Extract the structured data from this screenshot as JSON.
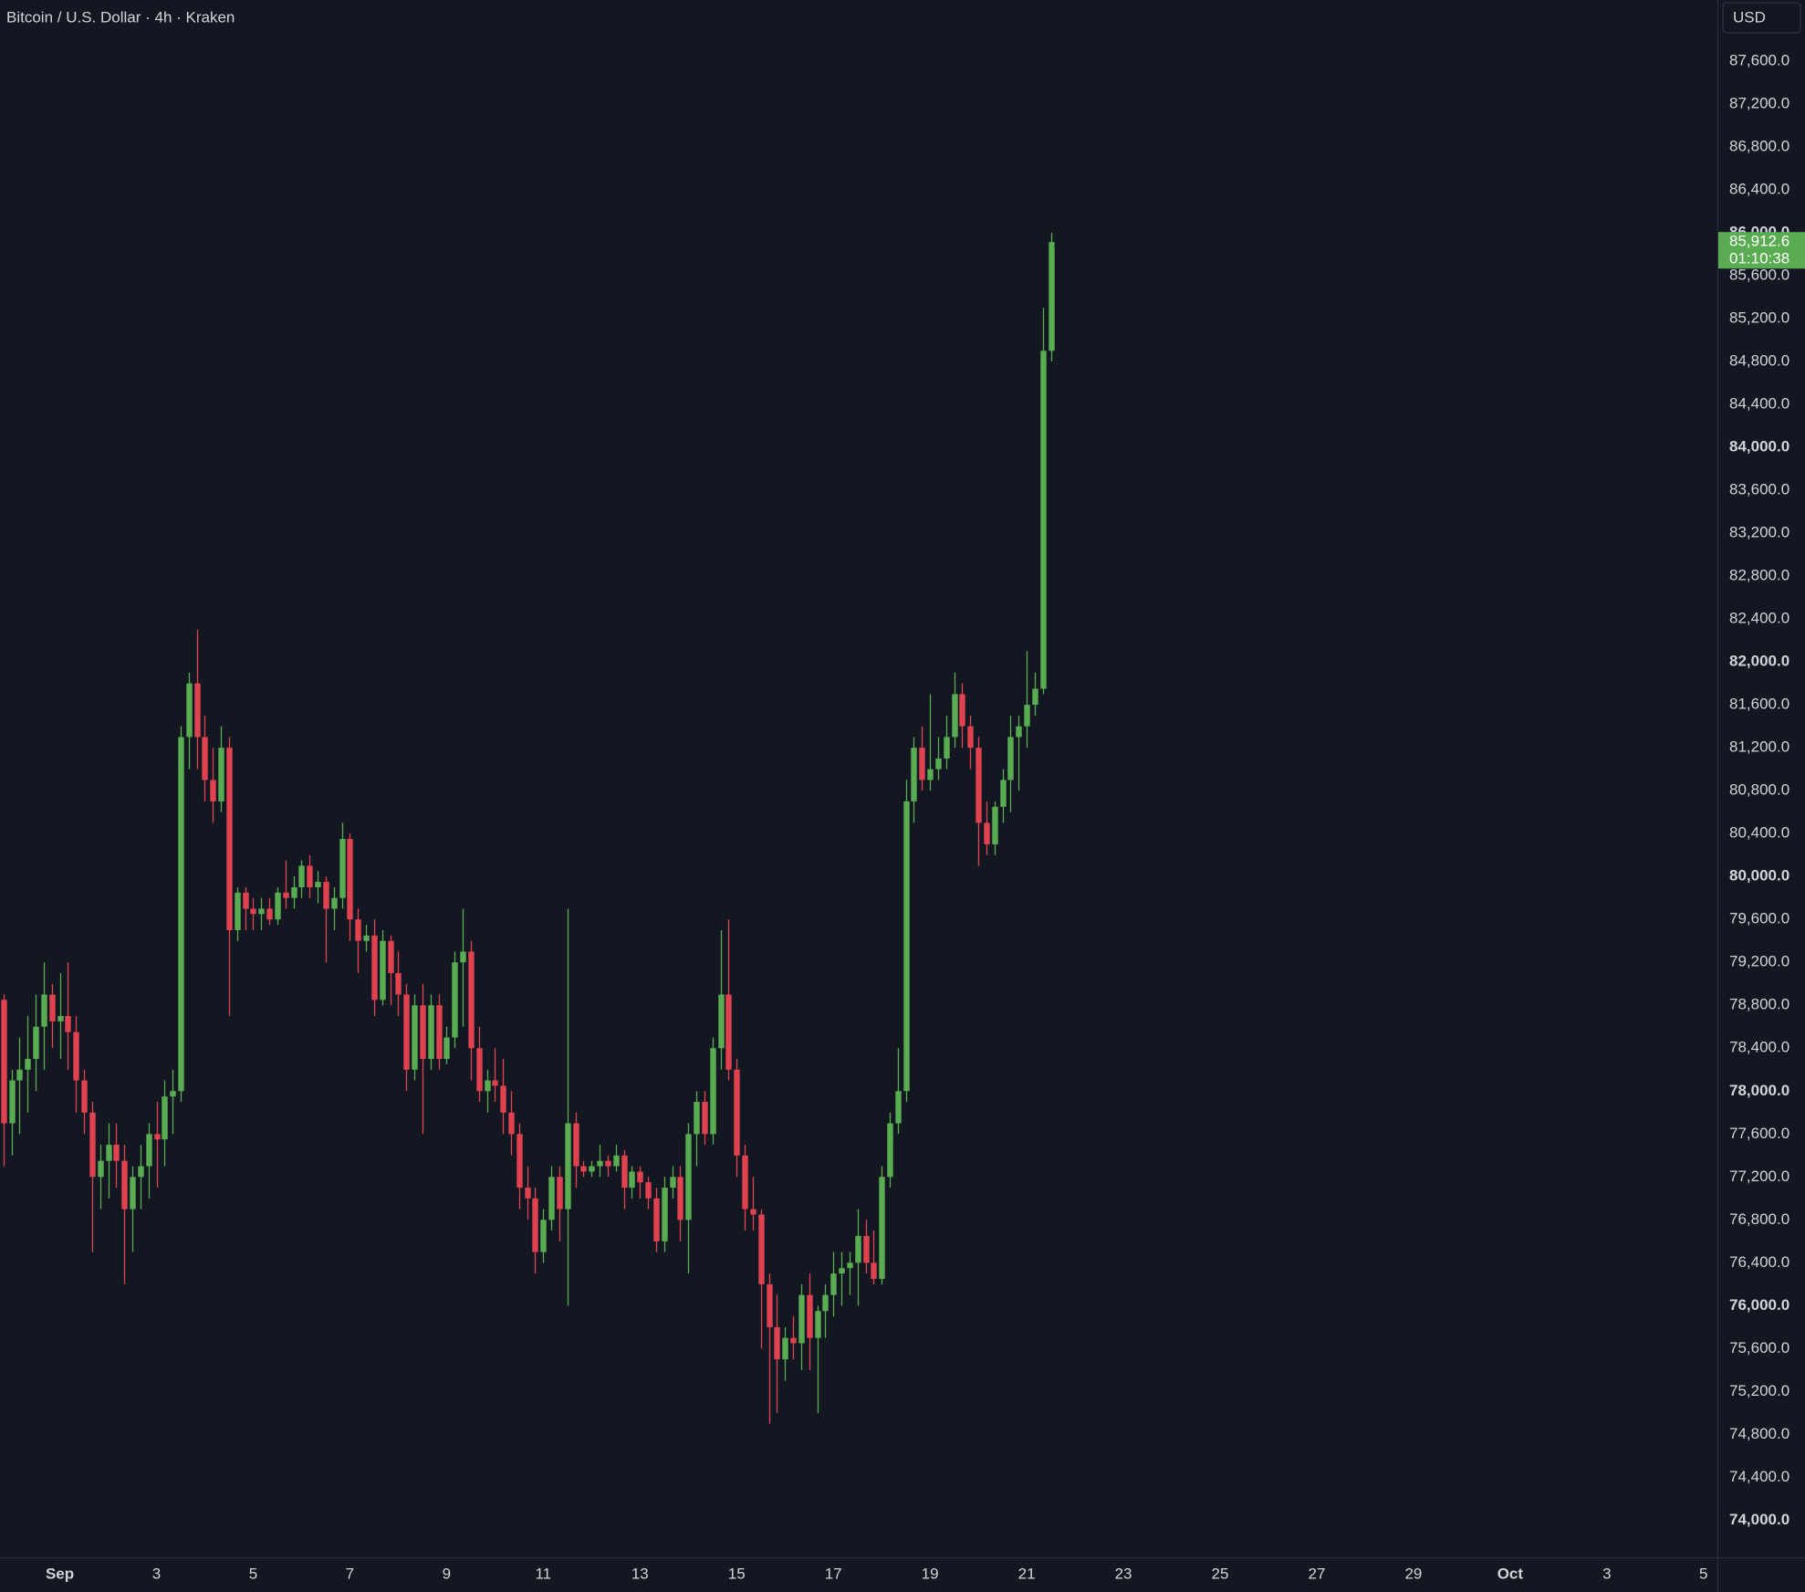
{
  "header": {
    "title": "Bitcoin / U.S. Dollar · 4h · Kraken",
    "currency_button": "USD"
  },
  "chart_data": {
    "type": "candlestick",
    "up_color": "#5aac52",
    "down_color": "#e0434f",
    "xlim": [
      -5.7,
      846.9
    ],
    "ylim": [
      73655,
      88169
    ],
    "xticks": [
      {
        "value": 24,
        "label": "Sep"
      },
      {
        "value": 72,
        "label": "3"
      },
      {
        "value": 120,
        "label": "5"
      },
      {
        "value": 168,
        "label": "7"
      },
      {
        "value": 216,
        "label": "9"
      },
      {
        "value": 264,
        "label": "11"
      },
      {
        "value": 312,
        "label": "13"
      },
      {
        "value": 360,
        "label": "15"
      },
      {
        "value": 408,
        "label": "17"
      },
      {
        "value": 456,
        "label": "19"
      },
      {
        "value": 504,
        "label": "21"
      },
      {
        "value": 552,
        "label": "23"
      },
      {
        "value": 600,
        "label": "25"
      },
      {
        "value": 648,
        "label": "27"
      },
      {
        "value": 696,
        "label": "29"
      },
      {
        "value": 744,
        "label": "Oct"
      },
      {
        "value": 792,
        "label": "3"
      },
      {
        "value": 840,
        "label": "5"
      }
    ],
    "yticks": [
      {
        "value": 74000,
        "label": "74,000.0"
      },
      {
        "value": 74400,
        "label": "74,400.0"
      },
      {
        "value": 74800,
        "label": "74,800.0"
      },
      {
        "value": 75200,
        "label": "75,200.0"
      },
      {
        "value": 75600,
        "label": "75,600.0"
      },
      {
        "value": 76000,
        "label": "76,000.0"
      },
      {
        "value": 76400,
        "label": "76,400.0"
      },
      {
        "value": 76800,
        "label": "76,800.0"
      },
      {
        "value": 77200,
        "label": "77,200.0"
      },
      {
        "value": 77600,
        "label": "77,600.0"
      },
      {
        "value": 78000,
        "label": "78,000.0"
      },
      {
        "value": 78400,
        "label": "78,400.0"
      },
      {
        "value": 78800,
        "label": "78,800.0"
      },
      {
        "value": 79200,
        "label": "79,200.0"
      },
      {
        "value": 79600,
        "label": "79,600.0"
      },
      {
        "value": 80000,
        "label": "80,000.0"
      },
      {
        "value": 80400,
        "label": "80,400.0"
      },
      {
        "value": 80800,
        "label": "80,800.0"
      },
      {
        "value": 81200,
        "label": "81,200.0"
      },
      {
        "value": 81600,
        "label": "81,600.0"
      },
      {
        "value": 82000,
        "label": "82,000.0"
      },
      {
        "value": 82400,
        "label": "82,400.0"
      },
      {
        "value": 82800,
        "label": "82,800.0"
      },
      {
        "value": 83200,
        "label": "83,200.0"
      },
      {
        "value": 83600,
        "label": "83,600.0"
      },
      {
        "value": 84000,
        "label": "84,000.0"
      },
      {
        "value": 84400,
        "label": "84,400.0"
      },
      {
        "value": 84800,
        "label": "84,800.0"
      },
      {
        "value": 85200,
        "label": "85,200.0"
      },
      {
        "value": 85600,
        "label": "85,600.0"
      },
      {
        "value": 86000,
        "label": "86,000.0"
      },
      {
        "value": 86400,
        "label": "86,400.0"
      },
      {
        "value": 86800,
        "label": "86,800.0"
      },
      {
        "value": 87200,
        "label": "87,200.0"
      },
      {
        "value": 87600,
        "label": "87,600.0"
      }
    ],
    "x": [
      -4,
      0,
      4,
      8,
      12,
      16,
      20,
      24,
      28,
      32,
      36,
      40,
      44,
      48,
      52,
      56,
      60,
      64,
      68,
      72,
      76,
      80,
      84,
      88,
      92,
      96,
      100,
      104,
      108,
      112,
      116,
      120,
      124,
      128,
      132,
      136,
      140,
      144,
      148,
      152,
      156,
      160,
      164,
      168,
      172,
      176,
      180,
      184,
      188,
      192,
      196,
      200,
      204,
      208,
      212,
      216,
      220,
      224,
      228,
      232,
      236,
      240,
      244,
      248,
      252,
      256,
      260,
      264,
      268,
      272,
      276,
      280,
      284,
      288,
      292,
      296,
      300,
      304,
      308,
      312,
      316,
      320,
      324,
      328,
      332,
      336,
      340,
      344,
      348,
      352,
      356,
      360,
      364,
      368,
      372,
      376,
      380,
      384,
      388,
      392,
      396,
      400,
      404,
      408,
      412,
      416,
      420,
      424,
      428,
      432,
      436,
      440,
      444,
      448,
      452,
      456,
      460,
      464,
      468,
      472,
      476,
      480,
      484,
      488,
      492,
      496,
      500,
      504,
      508,
      512,
      516
    ],
    "open": [
      78850,
      77700,
      78100,
      78200,
      78300,
      78600,
      78900,
      78650,
      78700,
      78550,
      78100,
      77800,
      77200,
      77350,
      77500,
      77350,
      76900,
      77200,
      77300,
      77600,
      77550,
      77950,
      78000,
      81300,
      81800,
      81300,
      80900,
      80700,
      81200,
      79500,
      79850,
      79700,
      79650,
      79700,
      79600,
      79850,
      79800,
      79900,
      80100,
      79900,
      79950,
      79700,
      79800,
      80350,
      79600,
      79400,
      79450,
      78850,
      79400,
      79100,
      78900,
      78200,
      78800,
      78300,
      78800,
      78300,
      78500,
      79200,
      79300,
      78400,
      78000,
      78100,
      78050,
      77800,
      77600,
      77100,
      77000,
      76500,
      76800,
      77200,
      76900,
      77700,
      77300,
      77250,
      77300,
      77350,
      77300,
      77400,
      77100,
      77250,
      77150,
      77000,
      76600,
      77100,
      77200,
      76800,
      77600,
      77900,
      77600,
      78400,
      78900,
      78200,
      77400,
      76900,
      76850,
      76200,
      75800,
      75500,
      75700,
      75650,
      76100,
      75700,
      75950,
      76100,
      76300,
      76350,
      76400,
      76650,
      76400,
      76250,
      77200,
      77700,
      78000,
      80700,
      81200,
      80900,
      81000,
      81100,
      81300,
      81700,
      81400,
      81200,
      80500,
      80300,
      80650,
      80900,
      81300,
      81400,
      81600,
      81750,
      84900
    ],
    "high": [
      78900,
      78200,
      78500,
      78700,
      78900,
      79200,
      79000,
      79100,
      79200,
      78700,
      78200,
      77900,
      77500,
      77700,
      77700,
      77500,
      77300,
      77500,
      77700,
      77900,
      78100,
      78200,
      81400,
      81900,
      82300,
      81500,
      81200,
      81400,
      81300,
      79900,
      79900,
      79800,
      79800,
      79800,
      79900,
      80150,
      80000,
      80150,
      80200,
      80050,
      80000,
      79900,
      80500,
      80400,
      79700,
      79550,
      79600,
      79500,
      79450,
      79300,
      79000,
      78900,
      79000,
      78900,
      78900,
      78600,
      79300,
      79700,
      79400,
      78600,
      78200,
      78400,
      78300,
      78000,
      77700,
      77300,
      77100,
      76900,
      77300,
      77300,
      79700,
      77800,
      77350,
      77350,
      77500,
      77400,
      77500,
      77450,
      77300,
      77300,
      77200,
      77100,
      77200,
      77300,
      77300,
      77700,
      78000,
      78000,
      78500,
      79500,
      79600,
      78300,
      77500,
      77200,
      76900,
      76300,
      76100,
      75800,
      75900,
      76200,
      76300,
      76000,
      76200,
      76500,
      76500,
      76500,
      76900,
      76800,
      76700,
      77300,
      77800,
      78400,
      80900,
      81300,
      81400,
      81700,
      81300,
      81500,
      81900,
      81800,
      81500,
      81300,
      80700,
      80700,
      81000,
      81500,
      81500,
      82100,
      81900,
      85300,
      86000
    ],
    "low": [
      77300,
      77400,
      77600,
      77800,
      78000,
      78200,
      78400,
      78300,
      78200,
      77800,
      77600,
      76500,
      76900,
      77000,
      77100,
      76200,
      76500,
      76900,
      77000,
      77100,
      77300,
      77600,
      77900,
      81000,
      81000,
      80700,
      80500,
      80600,
      78700,
      79400,
      79500,
      79500,
      79500,
      79550,
      79550,
      79700,
      79700,
      79800,
      79800,
      79750,
      79200,
      79500,
      79700,
      79400,
      79100,
      79300,
      78700,
      78800,
      78800,
      78700,
      78000,
      78100,
      77600,
      78200,
      78200,
      78250,
      78400,
      78600,
      78100,
      77900,
      77800,
      77900,
      77600,
      77400,
      76900,
      76800,
      76300,
      76400,
      76700,
      76600,
      76000,
      77100,
      77200,
      77200,
      77200,
      77200,
      77250,
      76900,
      77000,
      77000,
      76900,
      76500,
      76500,
      77000,
      76600,
      76300,
      77300,
      77500,
      77500,
      78200,
      78100,
      77200,
      76700,
      76700,
      75600,
      74900,
      75000,
      75300,
      75500,
      75400,
      75400,
      75000,
      75700,
      75900,
      76000,
      76100,
      76000,
      76300,
      76200,
      76200,
      77100,
      77600,
      77900,
      80500,
      80800,
      80800,
      80900,
      81000,
      81200,
      81200,
      81000,
      80100,
      80200,
      80200,
      80500,
      80600,
      80800,
      81200,
      81500,
      81700,
      84800
    ],
    "close": [
      77700,
      78100,
      78200,
      78300,
      78600,
      78900,
      78650,
      78700,
      78550,
      78100,
      77800,
      77200,
      77350,
      77500,
      77350,
      76900,
      77200,
      77300,
      77600,
      77550,
      77950,
      78000,
      81300,
      81800,
      81300,
      80900,
      80700,
      81200,
      79500,
      79850,
      79700,
      79650,
      79700,
      79600,
      79850,
      79800,
      79900,
      80100,
      79900,
      79950,
      79700,
      79800,
      80350,
      79600,
      79400,
      79450,
      78850,
      79400,
      79100,
      78900,
      78200,
      78800,
      78300,
      78800,
      78300,
      78500,
      79200,
      79300,
      78400,
      78000,
      78100,
      78050,
      77800,
      77600,
      77100,
      77000,
      76500,
      76800,
      77200,
      76900,
      77700,
      77300,
      77250,
      77300,
      77350,
      77300,
      77400,
      77100,
      77250,
      77150,
      77000,
      76600,
      77100,
      77200,
      76800,
      77600,
      77900,
      77600,
      78400,
      78900,
      78200,
      77400,
      76900,
      76850,
      76200,
      75800,
      75500,
      75700,
      75650,
      76100,
      75700,
      75950,
      76100,
      76300,
      76350,
      76400,
      76650,
      76400,
      76250,
      77200,
      77700,
      78000,
      80700,
      81200,
      80900,
      81000,
      81100,
      81300,
      81700,
      81400,
      81200,
      80500,
      80300,
      80650,
      80900,
      81300,
      81400,
      81600,
      81750,
      84900,
      85912.6
    ],
    "last_label": "85,912.6",
    "countdown": "01:10:38"
  }
}
